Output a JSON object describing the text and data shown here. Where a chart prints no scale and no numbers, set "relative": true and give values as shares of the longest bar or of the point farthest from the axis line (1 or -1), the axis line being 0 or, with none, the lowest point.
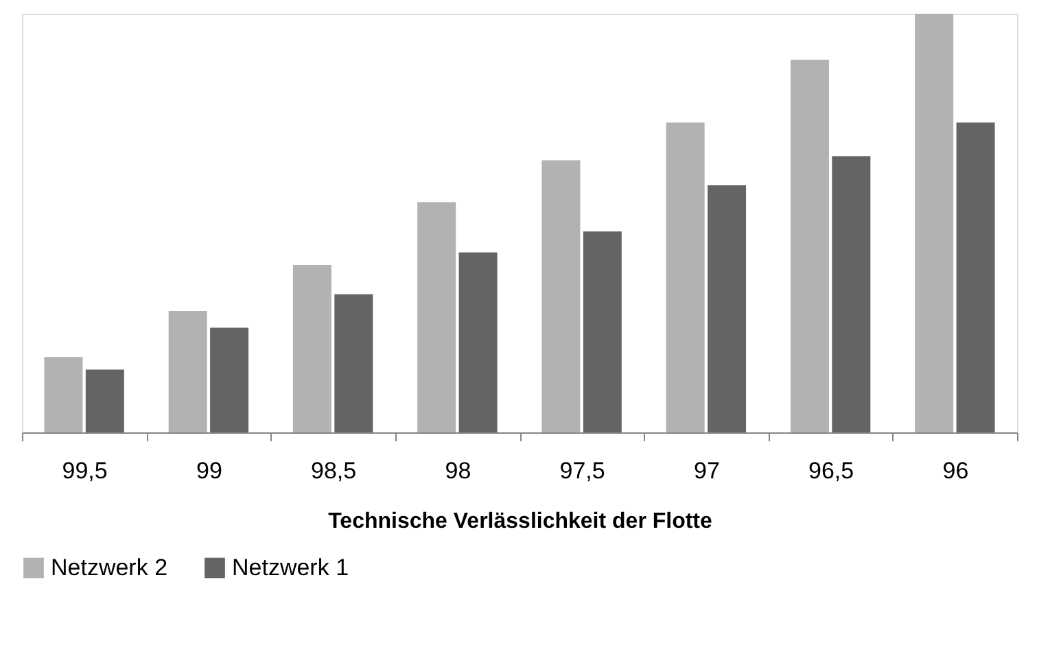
{
  "chart_data": {
    "type": "bar",
    "relative": true,
    "xlabel": "Technische Verlässlichkeit der Flotte",
    "categories": [
      "99,5",
      "99",
      "98,5",
      "98",
      "97,5",
      "97",
      "96,5",
      "96"
    ],
    "series": [
      {
        "name": "Netzwerk 2",
        "color": "#b2b2b2",
        "values": [
          0.18,
          0.29,
          0.4,
          0.55,
          0.65,
          0.74,
          0.89,
          1.0
        ]
      },
      {
        "name": "Netzwerk 1",
        "color": "#646464",
        "values": [
          0.15,
          0.25,
          0.33,
          0.43,
          0.48,
          0.59,
          0.66,
          0.74
        ]
      }
    ],
    "legend": "bottom",
    "grid": false
  }
}
